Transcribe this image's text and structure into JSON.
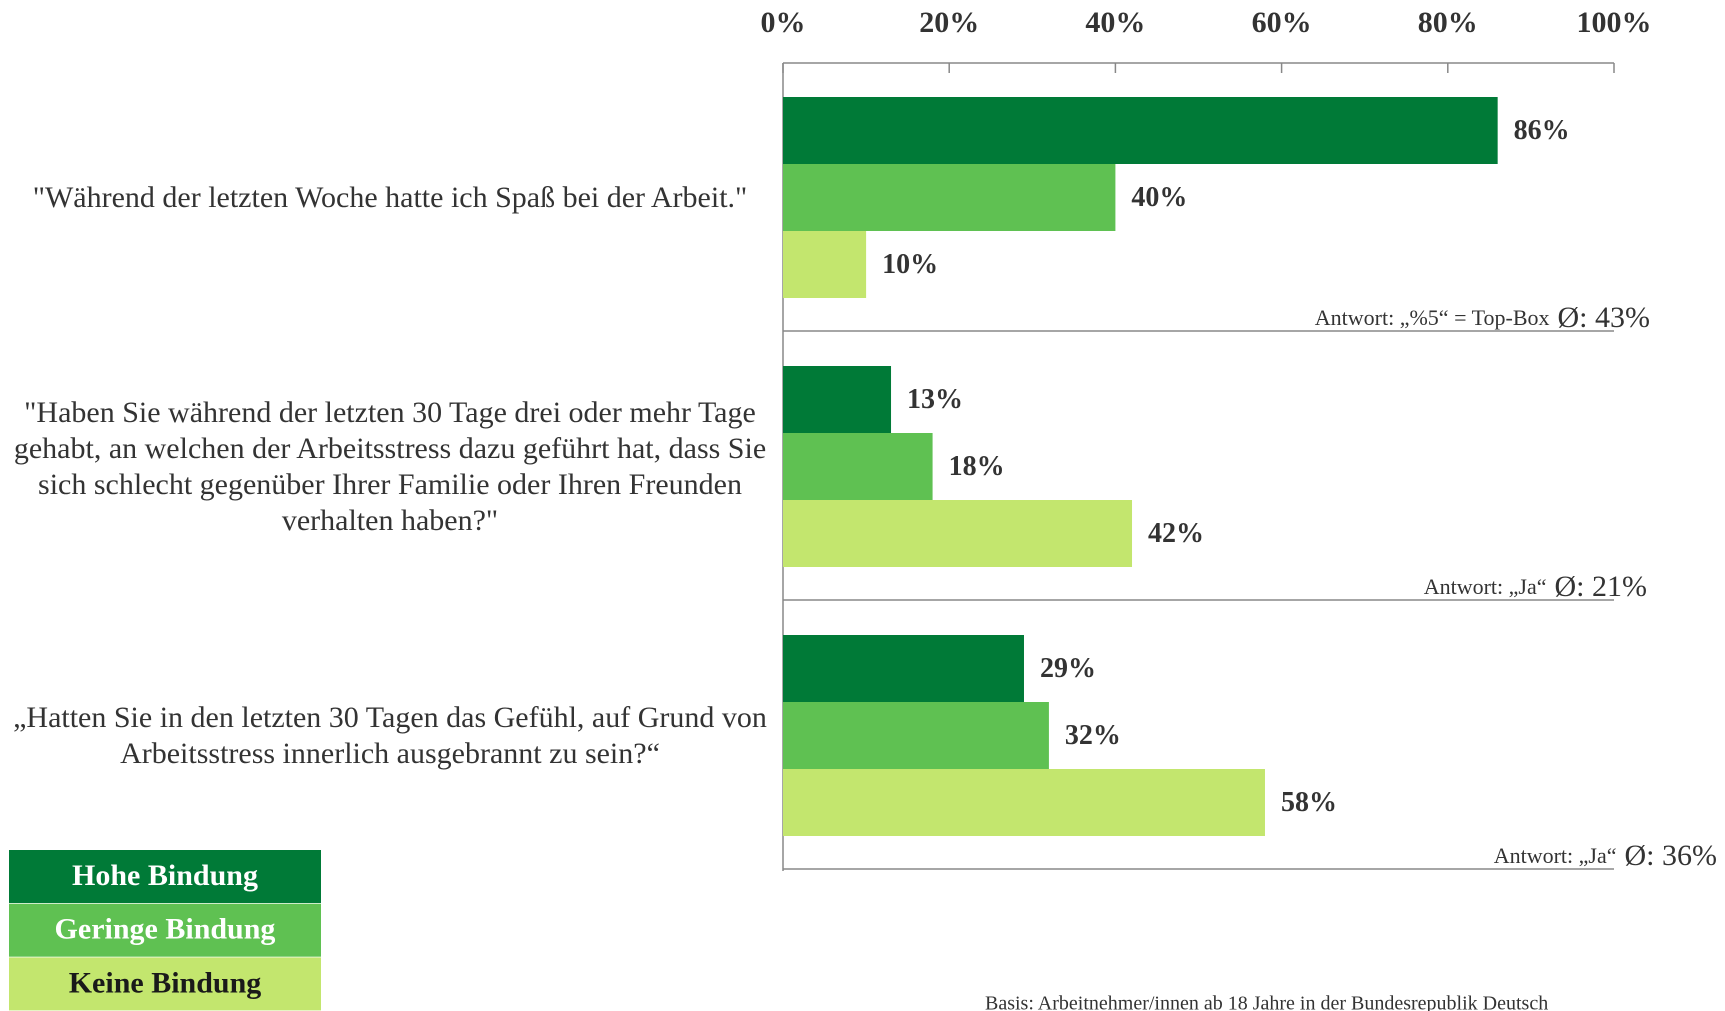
{
  "chart_data": {
    "type": "bar",
    "orientation": "horizontal",
    "categories": [
      "\"Während der letzten Woche hatte ich Spaß bei der Arbeit.\"",
      "\"Haben Sie während der letzten 30 Tage drei oder mehr Tage gehabt, an welchen der Arbeitsstress dazu geführt hat, dass Sie sich schlecht gegenüber Ihrer Familie oder Ihren Freunden verhalten haben?\"",
      "„Hatten Sie in den letzten 30 Tagen das Gefühl, auf Grund von Arbeitsstress innerlich ausgebrannt zu sein?“"
    ],
    "series": [
      {
        "name": "Hohe Bindung",
        "color": "#007a37",
        "values": [
          86,
          13,
          29
        ],
        "value_labels": [
          "86%",
          "13%",
          "29%"
        ]
      },
      {
        "name": "Geringe Bindung",
        "color": "#5fc152",
        "values": [
          40,
          18,
          32
        ],
        "value_labels": [
          "40%",
          "18%",
          "32%"
        ]
      },
      {
        "name": "Keine Bindung",
        "color": "#c3e66e",
        "values": [
          10,
          42,
          58
        ],
        "value_labels": [
          "10%",
          "42%",
          "58%"
        ]
      }
    ],
    "annotations": [
      {
        "note": "Antwort: „%5“ = Top-Box",
        "mean": "Ø: 43%"
      },
      {
        "note": "Antwort: „Ja“",
        "mean": "Ø: 21%"
      },
      {
        "note": "Antwort: „Ja“",
        "mean": "Ø: 36%"
      }
    ],
    "xlim": [
      0,
      100
    ],
    "xticks": [
      {
        "value": 0,
        "label": "0%"
      },
      {
        "value": 20,
        "label": "20%"
      },
      {
        "value": 40,
        "label": "40%"
      },
      {
        "value": 60,
        "label": "60%"
      },
      {
        "value": 80,
        "label": "80%"
      },
      {
        "value": 100,
        "label": "100%"
      }
    ],
    "footnote": "Basis: Arbeitnehmer/innen ab 18 Jahre in der Bundesrepublik Deutsch"
  }
}
